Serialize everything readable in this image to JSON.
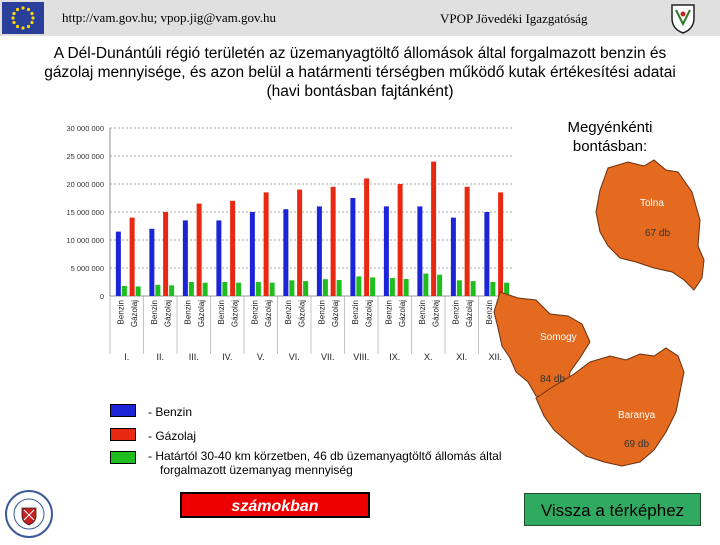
{
  "header": {
    "url_text": "http://vam.gov.hu; vpop.jig@vam.gov.hu",
    "org_text": "VPOP Jövedéki Igazgatóság"
  },
  "title": {
    "line1": "A Dél-Dunántúli régió területén az üzemanyagtöltő állomások által forgalmazott benzin és",
    "line2": "gázolaj mennyisége, és azon belül a határmenti térségben működő kutak értékesítési adatai",
    "line3": "(havi bontásban fajtánként)"
  },
  "colors": {
    "benzin": "#1c24d8",
    "gazolaj": "#e82810",
    "hatar": "#1dbe1d",
    "map_fill": "#e36a1e",
    "btn_red": "#ee0000",
    "btn_green": "#30aa60"
  },
  "chart_data": {
    "type": "bar",
    "categories": [
      "I.",
      "II.",
      "III.",
      "IV.",
      "V.",
      "VI.",
      "VII.",
      "VIII.",
      "IX.",
      "X.",
      "XI.",
      "XII."
    ],
    "series": [
      {
        "name": "- Benzin",
        "values": [
          11500000,
          12000000,
          13500000,
          13500000,
          15000000,
          15500000,
          16000000,
          17500000,
          16000000,
          16000000,
          14000000,
          15000000
        ]
      },
      {
        "name": "- Gázolaj",
        "values": [
          14000000,
          15000000,
          16500000,
          17000000,
          18500000,
          19000000,
          19500000,
          21000000,
          20000000,
          24000000,
          19500000,
          18500000
        ]
      },
      {
        "name": "- Határtól 30-40 km körzetben, 46 db üzemanyagtöltő állomás által forgalmazott üzemanyag mennyiség",
        "values": [
          1800000,
          2000000,
          2500000,
          2500000,
          2500000,
          2800000,
          3000000,
          3500000,
          3200000,
          4000000,
          2800000,
          2500000
        ]
      }
    ],
    "bar_labels": [
      "Benzin",
      "Gázolaj"
    ],
    "y_ticks": [
      "0",
      "5 000 000",
      "10 000 000",
      "15 000 000",
      "20 000 000",
      "25 000 000",
      "30 000 000"
    ],
    "ylim": [
      0,
      30000000
    ],
    "grid": true
  },
  "map": {
    "title": "Megyénkénti bontásban:",
    "regions": [
      {
        "name": "Tolna",
        "count": "67 db"
      },
      {
        "name": "Somogy",
        "count": "84 db"
      },
      {
        "name": "Baranya",
        "count": "69 db"
      }
    ]
  },
  "legend": {
    "benzin": "- Benzin",
    "gazolaj": "- Gázolaj",
    "hatar_line1": "- Határtól 30-40 km körzetben, 46 db üzemanyagtöltő állomás által",
    "hatar_line2": "forgalmazott üzemanyag mennyiség"
  },
  "buttons": {
    "szamokban": "számokban",
    "vissza": "Vissza a térképhez"
  }
}
